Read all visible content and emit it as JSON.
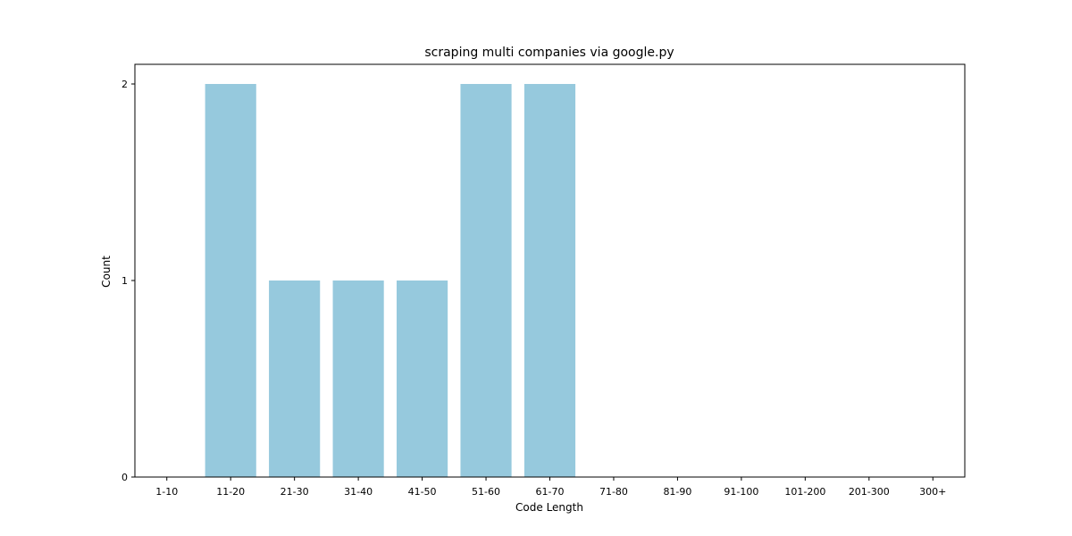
{
  "chart_data": {
    "type": "bar",
    "title": "scraping multi companies via google.py",
    "xlabel": "Code Length",
    "ylabel": "Count",
    "categories": [
      "1-10",
      "11-20",
      "21-30",
      "31-40",
      "41-50",
      "51-60",
      "61-70",
      "71-80",
      "81-90",
      "91-100",
      "101-200",
      "201-300",
      "300+"
    ],
    "values": [
      0,
      2,
      1,
      1,
      1,
      2,
      2,
      0,
      0,
      0,
      0,
      0,
      0
    ],
    "ylim": [
      0,
      2.1
    ],
    "yticks": [
      0,
      1,
      2
    ],
    "grid": false,
    "bar_color": "#96c9dd"
  }
}
